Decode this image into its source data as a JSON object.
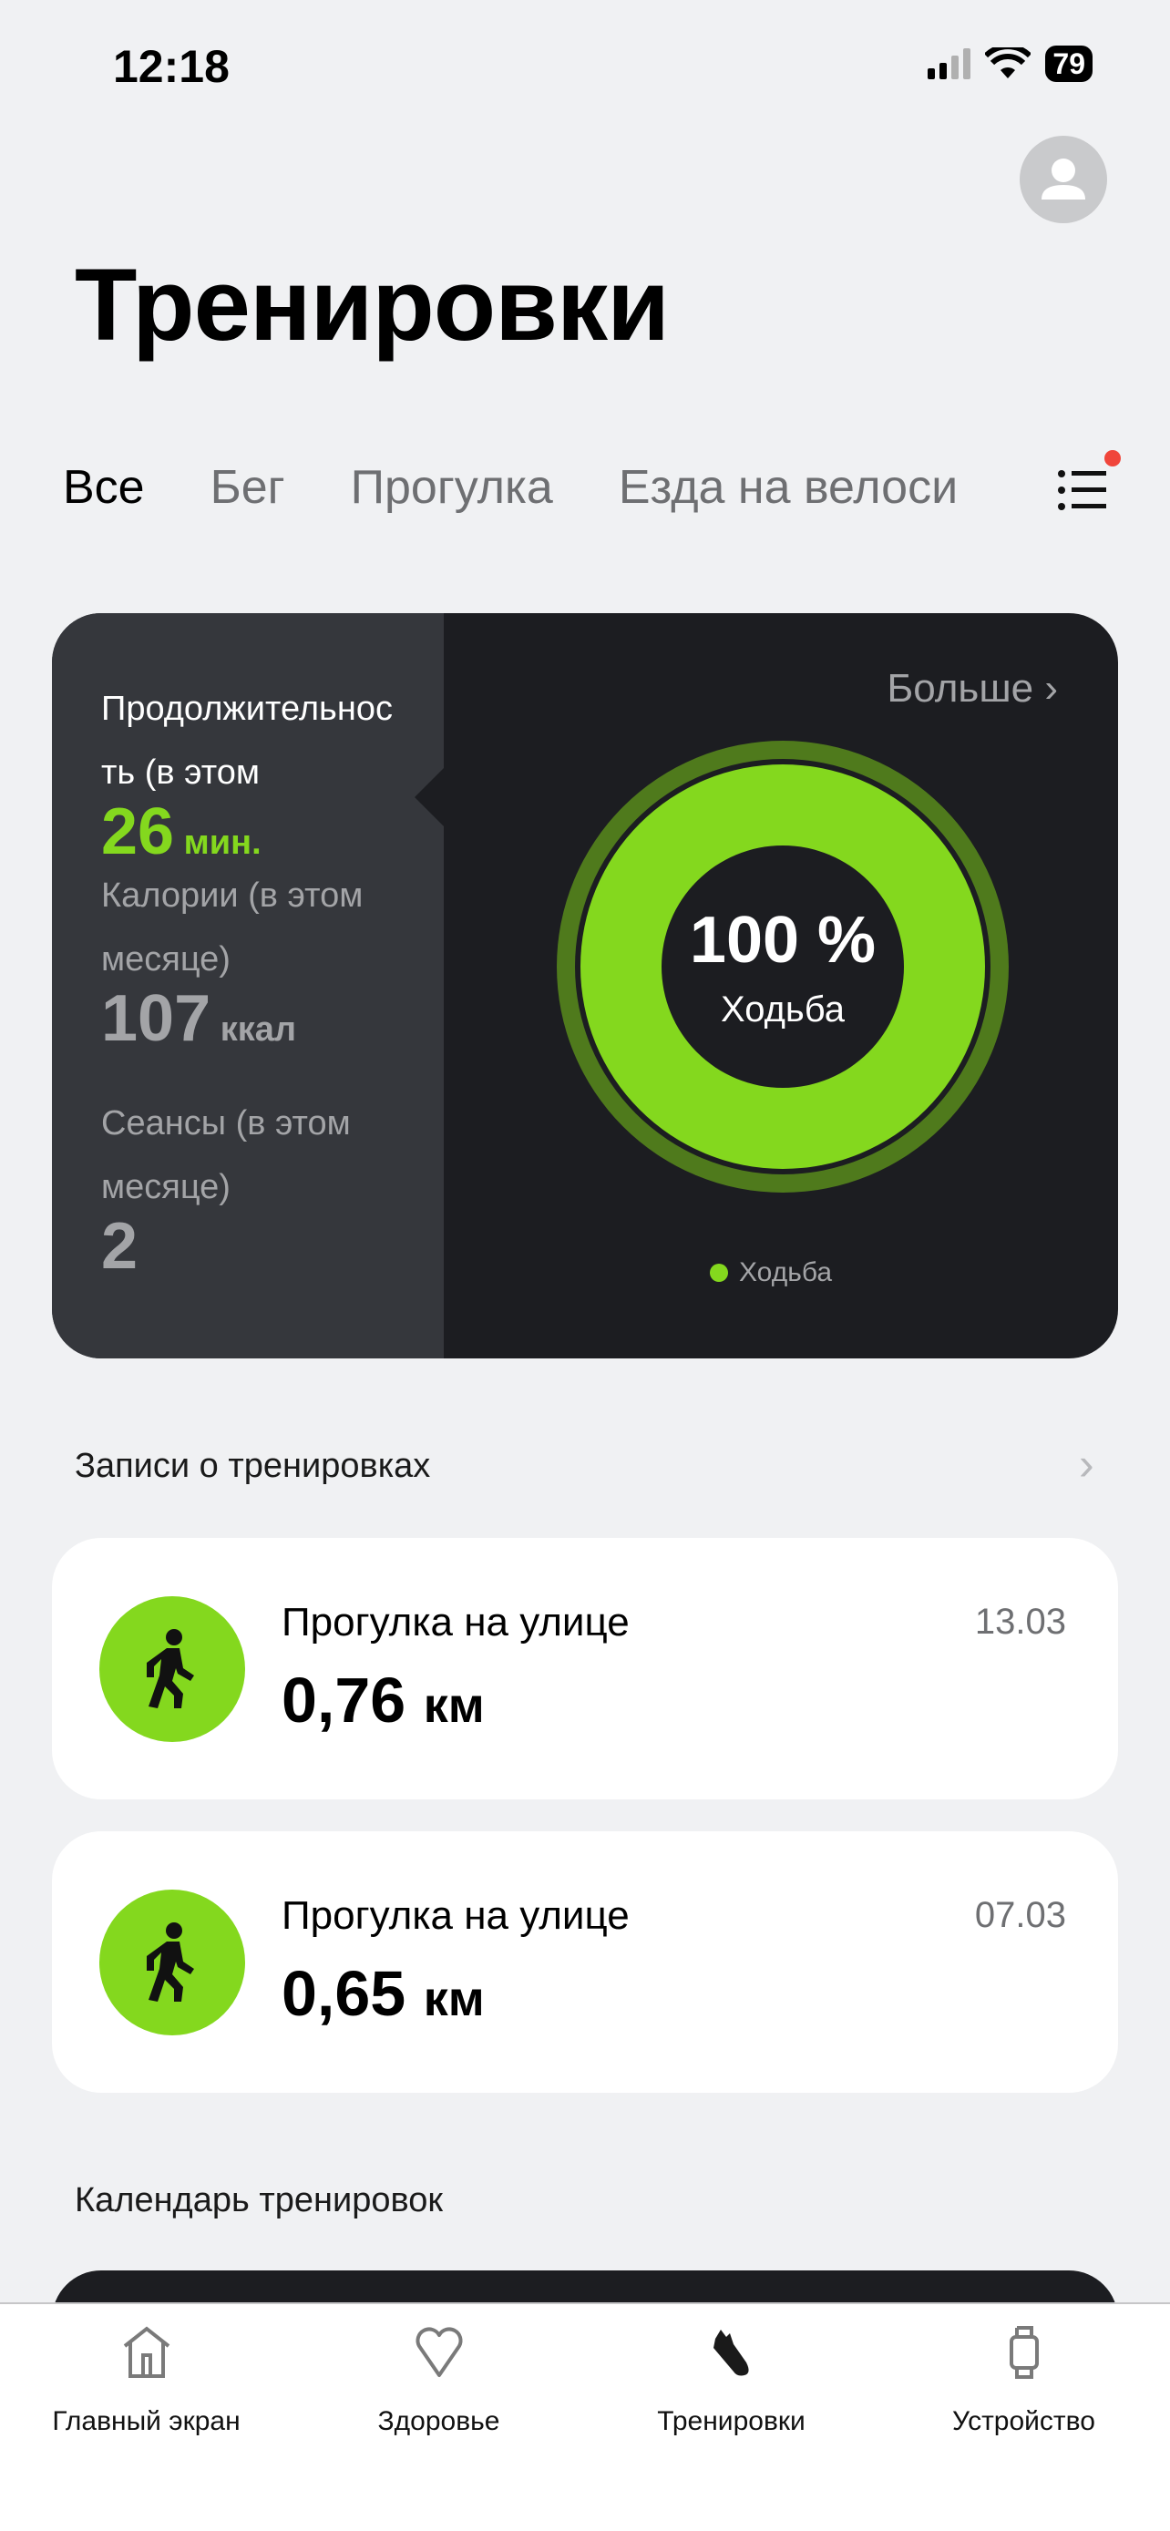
{
  "status_bar": {
    "time": "12:18",
    "battery": "79"
  },
  "header": {
    "title": "Тренировки"
  },
  "tabs": [
    {
      "label": "Все",
      "active": true
    },
    {
      "label": "Бег"
    },
    {
      "label": "Прогулка"
    },
    {
      "label": "Езда на велоси"
    }
  ],
  "summary": {
    "more_label": "Больше",
    "duration_label": "Продолжительность (в этом",
    "duration_label_l1": "Продолжительнос",
    "duration_label_l2": "ть (в этом",
    "duration_value": "26",
    "duration_unit": "мин.",
    "calories_label_l1": "Калории (в этом",
    "calories_label_l2": "месяце)",
    "calories_value": "107",
    "calories_unit": "ккал",
    "sessions_label_l1": "Сеансы (в этом",
    "sessions_label_l2": "месяце)",
    "sessions_value": "2",
    "ring_percent": "100 %",
    "ring_label": "Ходьба",
    "legend": "Ходьба",
    "ring_share": 1.0,
    "accent": "#84d81e"
  },
  "records": {
    "title": "Записи о тренировках",
    "items": [
      {
        "name": "Прогулка на улице",
        "distance": "0,76",
        "unit": "км",
        "date": "13.03"
      },
      {
        "name": "Прогулка на улице",
        "distance": "0,65",
        "unit": "км",
        "date": "07.03"
      }
    ]
  },
  "calendar": {
    "title": "Календарь тренировок"
  },
  "nav": [
    {
      "label": "Главный экран",
      "icon": "home-icon"
    },
    {
      "label": "Здоровье",
      "icon": "heart-icon"
    },
    {
      "label": "Тренировки",
      "icon": "shoe-icon",
      "active": true
    },
    {
      "label": "Устройство",
      "icon": "watch-icon"
    }
  ]
}
